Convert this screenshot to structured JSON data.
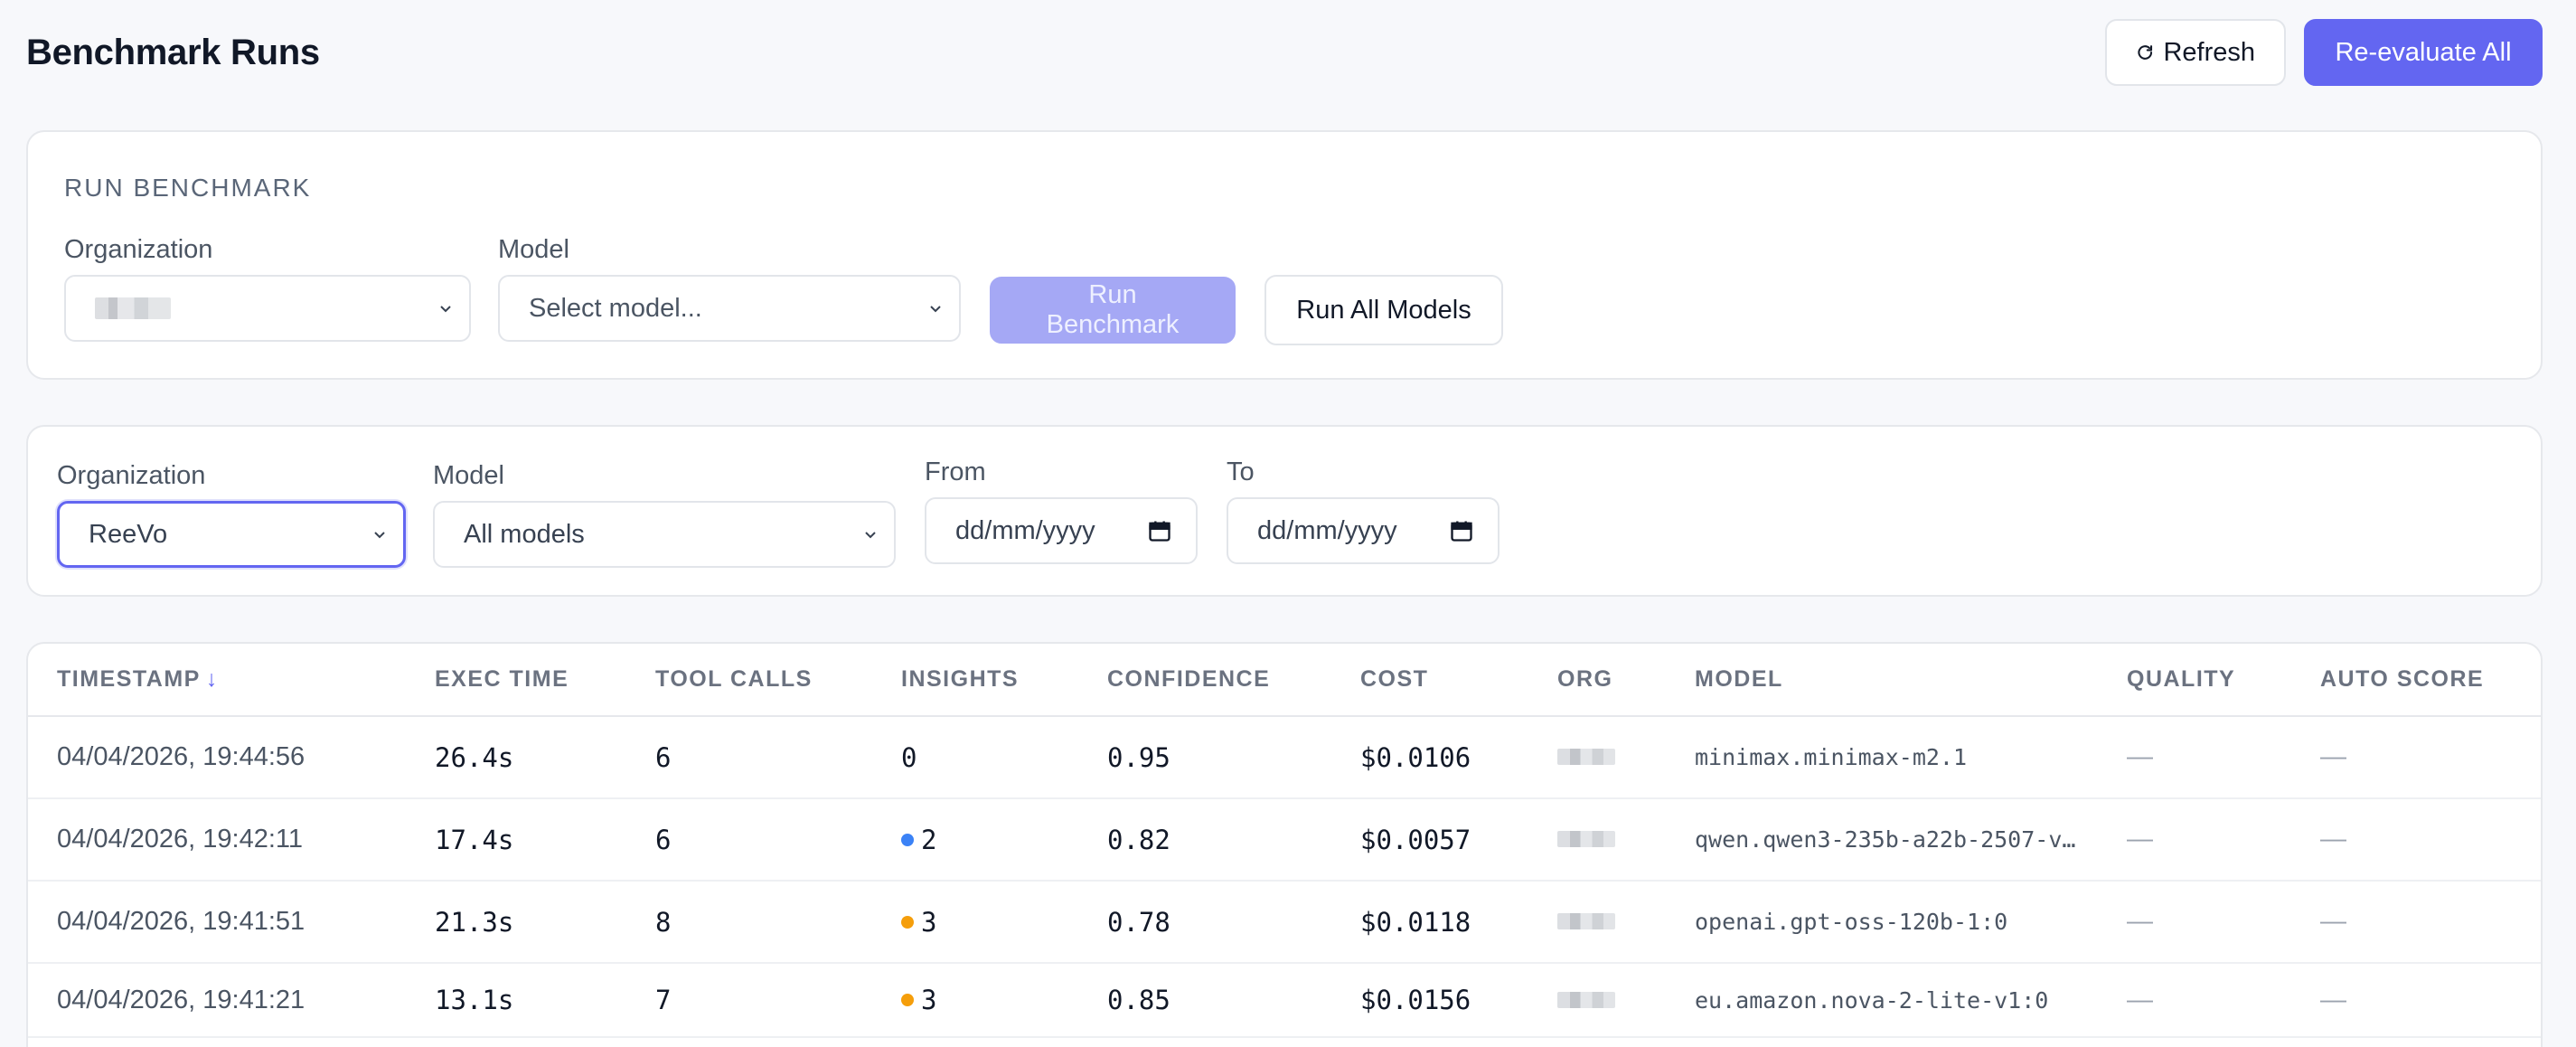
{
  "header": {
    "title": "Benchmark Runs",
    "refresh_label": "Refresh",
    "reevaluate_label": "Re-evaluate All"
  },
  "run_benchmark": {
    "section_title": "RUN BENCHMARK",
    "organization_label": "Organization",
    "model_label": "Model",
    "model_placeholder": "Select model...",
    "run_button": "Run Benchmark",
    "run_all_button": "Run All Models"
  },
  "filters": {
    "organization_label": "Organization",
    "organization_value": "ReeVo",
    "model_label": "Model",
    "model_value": "All models",
    "from_label": "From",
    "from_placeholder": "dd/mm/yyyy",
    "to_label": "To",
    "to_placeholder": "dd/mm/yyyy"
  },
  "table": {
    "columns": [
      "TIMESTAMP",
      "EXEC TIME",
      "TOOL CALLS",
      "INSIGHTS",
      "CONFIDENCE",
      "COST",
      "ORG",
      "MODEL",
      "QUALITY",
      "AUTO SCORE"
    ],
    "sort_arrow": "↓",
    "rows": [
      {
        "timestamp": "04/04/2026, 19:44:56",
        "exec_time": "26.4s",
        "tool_calls": "6",
        "insights": "0",
        "insight_dot": "",
        "confidence": "0.95",
        "cost": "$0.0106",
        "model": "minimax.minimax-m2.1",
        "quality": "—",
        "auto_score": "—"
      },
      {
        "timestamp": "04/04/2026, 19:42:11",
        "exec_time": "17.4s",
        "tool_calls": "6",
        "insights": "2",
        "insight_dot": "#3b82f6",
        "confidence": "0.82",
        "cost": "$0.0057",
        "model": "qwen.qwen3-235b-a22b-2507-v…",
        "quality": "—",
        "auto_score": "—"
      },
      {
        "timestamp": "04/04/2026, 19:41:51",
        "exec_time": "21.3s",
        "tool_calls": "8",
        "insights": "3",
        "insight_dot": "#f59e0b",
        "confidence": "0.78",
        "cost": "$0.0118",
        "model": "openai.gpt-oss-120b-1:0",
        "quality": "—",
        "auto_score": "—"
      },
      {
        "timestamp": "04/04/2026, 19:41:21",
        "exec_time": "13.1s",
        "tool_calls": "7",
        "insights": "3",
        "insight_dot": "#f59e0b",
        "confidence": "0.85",
        "cost": "$0.0156",
        "model": "eu.amazon.nova-2-lite-v1:0",
        "quality": "—",
        "auto_score": "—"
      }
    ]
  },
  "colors": {
    "accent": "#6366f1",
    "accent_disabled": "#a5a8f5",
    "dot_blue": "#3b82f6",
    "dot_orange": "#f59e0b"
  },
  "icons": {
    "refresh": "refresh-icon",
    "chevron": "chevron-down-icon",
    "calendar": "calendar-icon"
  }
}
